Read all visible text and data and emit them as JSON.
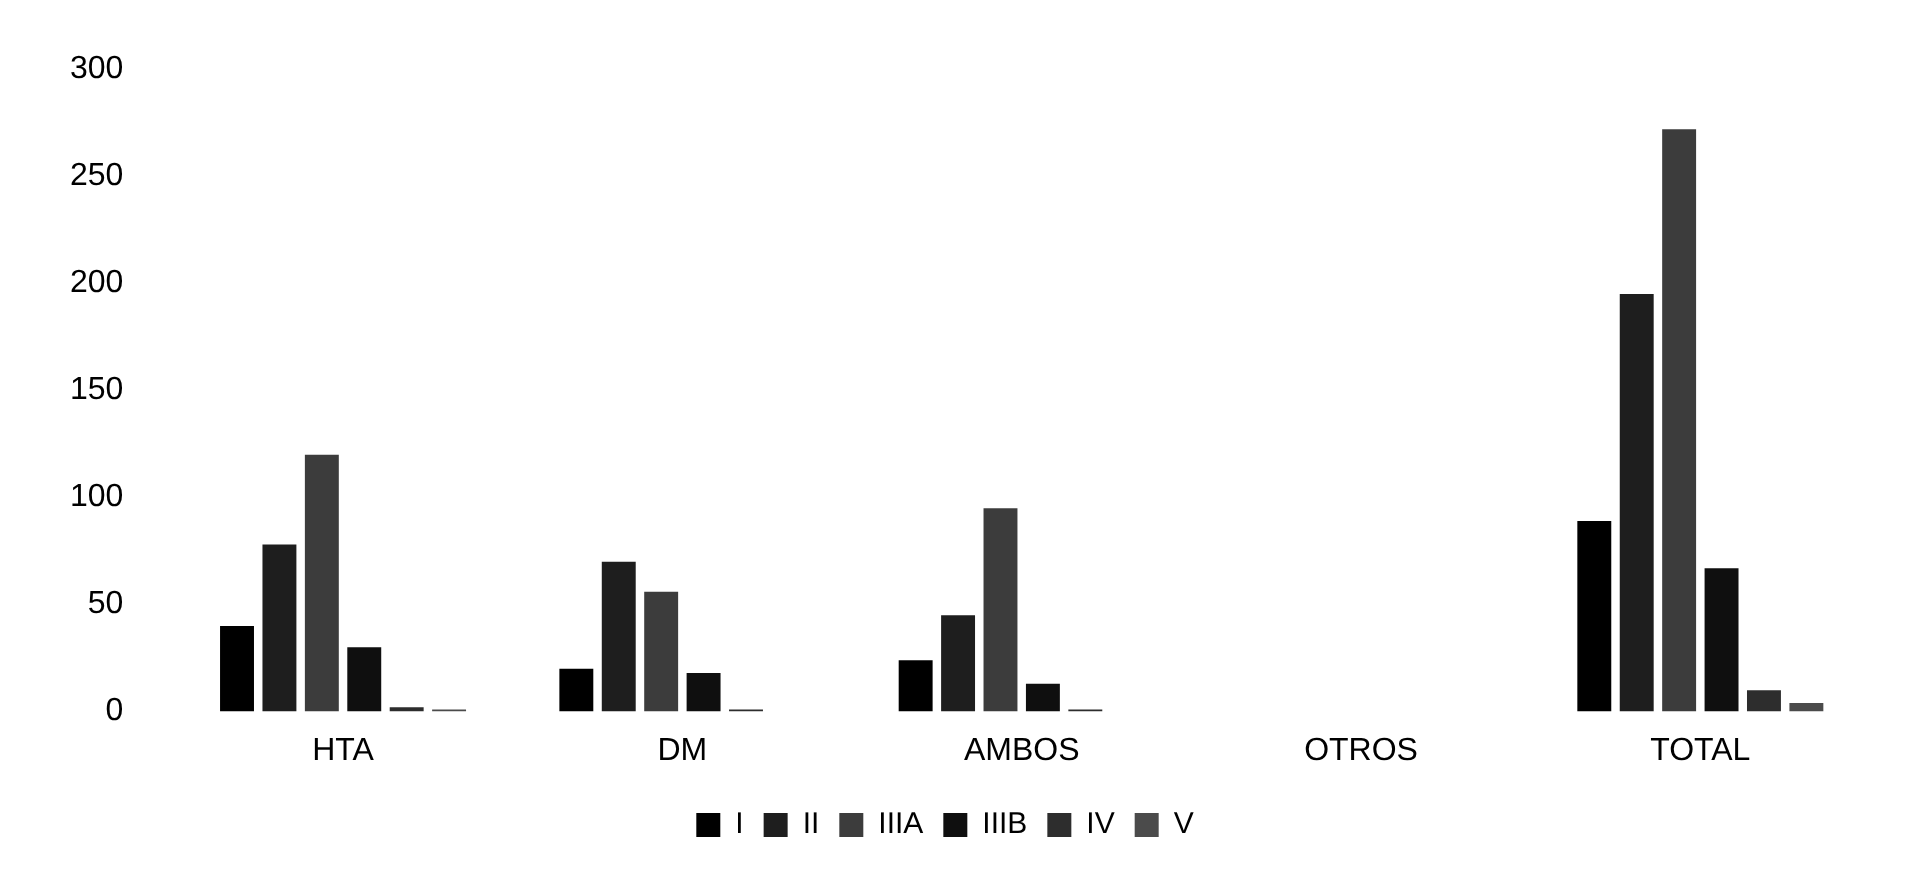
{
  "chart_data": {
    "type": "bar",
    "categories": [
      "HTA",
      "DM",
      "AMBOS",
      "OTROS",
      "TOTAL"
    ],
    "series": [
      {
        "name": "I",
        "color": "#000000",
        "values": [
          40,
          20,
          24,
          null,
          89
        ]
      },
      {
        "name": "II",
        "color": "#1e1e1e",
        "values": [
          78,
          70,
          45,
          null,
          195
        ]
      },
      {
        "name": "IIIA",
        "color": "#3c3c3c",
        "values": [
          120,
          56,
          95,
          null,
          272
        ]
      },
      {
        "name": "IIIB",
        "color": "#0f0f0f",
        "values": [
          30,
          18,
          13,
          null,
          67
        ]
      },
      {
        "name": "IV",
        "color": "#2d2d2d",
        "values": [
          2,
          1,
          1,
          null,
          10
        ]
      },
      {
        "name": "V",
        "color": "#4b4b4b",
        "values": [
          1,
          0,
          0,
          null,
          4
        ]
      }
    ],
    "ylim": [
      0,
      300
    ],
    "yticks": [
      0,
      50,
      100,
      150,
      200,
      250,
      300
    ],
    "grid": false,
    "legend": "bottom"
  }
}
